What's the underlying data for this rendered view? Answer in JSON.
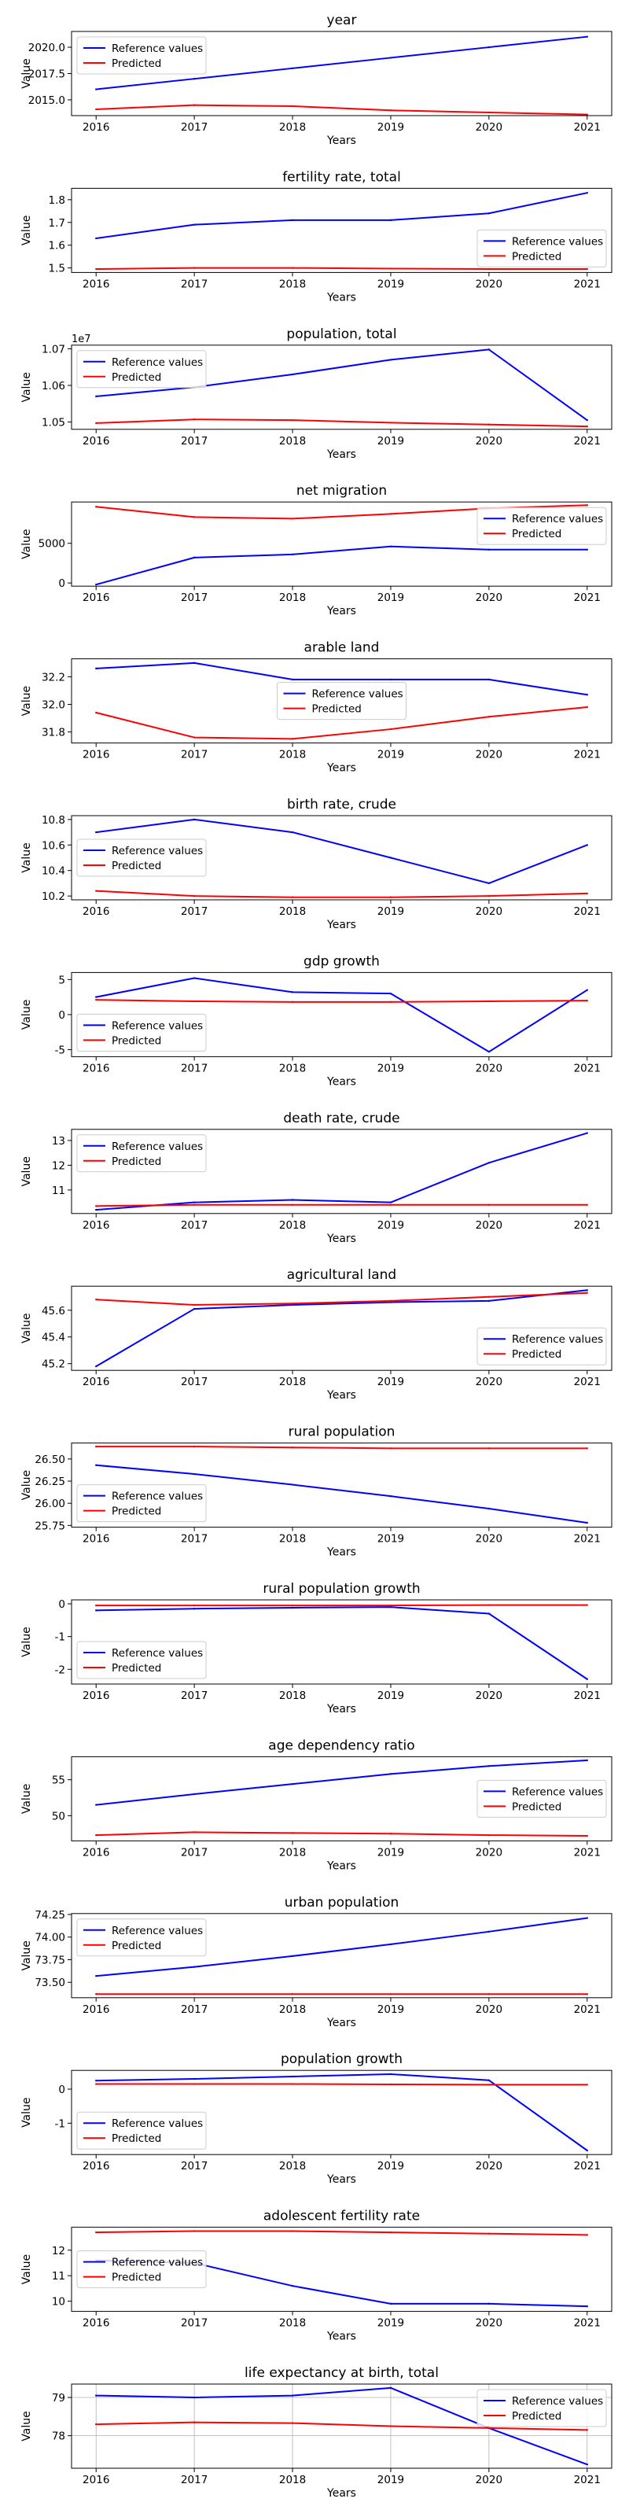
{
  "chart_data": [
    {
      "type": "line",
      "title": "year",
      "xlabel": "Years",
      "ylabel": "Value",
      "ylim": [
        2013.5,
        2021.5
      ],
      "yticks": [
        2015.0,
        2017.5,
        2020.0
      ],
      "tick_decimals": 1,
      "legend": "upper-left",
      "grid": false,
      "x": [
        2016,
        2017,
        2018,
        2019,
        2020,
        2021
      ],
      "series": [
        {
          "name": "Reference values",
          "color": "#0000ff",
          "values": [
            2016,
            2017,
            2018,
            2019,
            2020,
            2021
          ]
        },
        {
          "name": "Predicted",
          "color": "#ff0000",
          "values": [
            2014.1,
            2014.5,
            2014.4,
            2014.0,
            2013.8,
            2013.6
          ]
        }
      ]
    },
    {
      "type": "line",
      "title": "fertility rate, total",
      "xlabel": "Years",
      "ylabel": "Value",
      "ylim": [
        1.48,
        1.85
      ],
      "yticks": [
        1.5,
        1.6,
        1.7,
        1.8
      ],
      "tick_decimals": 1,
      "legend": "lower-right",
      "grid": false,
      "x": [
        2016,
        2017,
        2018,
        2019,
        2020,
        2021
      ],
      "series": [
        {
          "name": "Reference values",
          "color": "#0000ff",
          "values": [
            1.63,
            1.69,
            1.71,
            1.71,
            1.74,
            1.83
          ]
        },
        {
          "name": "Predicted",
          "color": "#ff0000",
          "values": [
            1.495,
            1.5,
            1.5,
            1.497,
            1.495,
            1.495
          ]
        }
      ]
    },
    {
      "type": "line",
      "title": "population, total",
      "xlabel": "Years",
      "ylabel": "Value",
      "ylim": [
        1.048,
        1.071
      ],
      "yticks": [
        1.05,
        1.06,
        1.07
      ],
      "tick_decimals": 2,
      "offset_text": "1e7",
      "legend": "upper-left",
      "grid": false,
      "x": [
        2016,
        2017,
        2018,
        2019,
        2020,
        2021
      ],
      "series": [
        {
          "name": "Reference values",
          "color": "#0000ff",
          "values": [
            1.057,
            1.0595,
            1.063,
            1.067,
            1.0698,
            1.0505
          ]
        },
        {
          "name": "Predicted",
          "color": "#ff0000",
          "values": [
            1.0497,
            1.0507,
            1.0505,
            1.0498,
            1.0493,
            1.0488
          ]
        }
      ]
    },
    {
      "type": "line",
      "title": "net migration",
      "xlabel": "Years",
      "ylabel": "Value",
      "ylim": [
        -400,
        10200
      ],
      "yticks": [
        0,
        5000
      ],
      "tick_decimals": 0,
      "legend": "upper-right",
      "grid": false,
      "x": [
        2016,
        2017,
        2018,
        2019,
        2020,
        2021
      ],
      "series": [
        {
          "name": "Reference values",
          "color": "#0000ff",
          "values": [
            -200,
            3200,
            3600,
            4600,
            4200,
            4200
          ]
        },
        {
          "name": "Predicted",
          "color": "#ff0000",
          "values": [
            9600,
            8300,
            8100,
            8700,
            9400,
            9800
          ]
        }
      ]
    },
    {
      "type": "line",
      "title": "arable land",
      "xlabel": "Years",
      "ylabel": "Value",
      "ylim": [
        31.72,
        32.33
      ],
      "yticks": [
        31.8,
        32.0,
        32.2
      ],
      "tick_decimals": 1,
      "legend": "center",
      "grid": false,
      "x": [
        2016,
        2017,
        2018,
        2019,
        2020,
        2021
      ],
      "series": [
        {
          "name": "Reference values",
          "color": "#0000ff",
          "values": [
            32.26,
            32.3,
            32.18,
            32.18,
            32.18,
            32.07
          ]
        },
        {
          "name": "Predicted",
          "color": "#ff0000",
          "values": [
            31.94,
            31.76,
            31.75,
            31.82,
            31.91,
            31.98
          ]
        }
      ]
    },
    {
      "type": "line",
      "title": "birth rate, crude",
      "xlabel": "Years",
      "ylabel": "Value",
      "ylim": [
        10.17,
        10.83
      ],
      "yticks": [
        10.2,
        10.4,
        10.6,
        10.8
      ],
      "tick_decimals": 1,
      "legend": "center-left",
      "grid": false,
      "x": [
        2016,
        2017,
        2018,
        2019,
        2020,
        2021
      ],
      "series": [
        {
          "name": "Reference values",
          "color": "#0000ff",
          "values": [
            10.7,
            10.8,
            10.7,
            10.5,
            10.3,
            10.6
          ]
        },
        {
          "name": "Predicted",
          "color": "#ff0000",
          "values": [
            10.24,
            10.2,
            10.19,
            10.19,
            10.2,
            10.22
          ]
        }
      ]
    },
    {
      "type": "line",
      "title": "gdp growth",
      "xlabel": "Years",
      "ylabel": "Value",
      "ylim": [
        -6.0,
        6.0
      ],
      "yticks": [
        -5,
        0,
        5
      ],
      "tick_decimals": 0,
      "legend": "lower-left",
      "grid": false,
      "x": [
        2016,
        2017,
        2018,
        2019,
        2020,
        2021
      ],
      "series": [
        {
          "name": "Reference values",
          "color": "#0000ff",
          "values": [
            2.5,
            5.2,
            3.2,
            3.0,
            -5.3,
            3.5
          ]
        },
        {
          "name": "Predicted",
          "color": "#ff0000",
          "values": [
            2.1,
            1.9,
            1.8,
            1.8,
            1.9,
            2.0
          ]
        }
      ]
    },
    {
      "type": "line",
      "title": "death rate, crude",
      "xlabel": "Years",
      "ylabel": "Value",
      "ylim": [
        10.05,
        13.45
      ],
      "yticks": [
        11,
        12,
        13
      ],
      "tick_decimals": 0,
      "legend": "upper-left",
      "grid": false,
      "x": [
        2016,
        2017,
        2018,
        2019,
        2020,
        2021
      ],
      "series": [
        {
          "name": "Reference values",
          "color": "#0000ff",
          "values": [
            10.2,
            10.5,
            10.6,
            10.5,
            12.1,
            13.3
          ]
        },
        {
          "name": "Predicted",
          "color": "#ff0000",
          "values": [
            10.35,
            10.4,
            10.4,
            10.4,
            10.4,
            10.4
          ]
        }
      ]
    },
    {
      "type": "line",
      "title": "agricultural land",
      "xlabel": "Years",
      "ylabel": "Value",
      "ylim": [
        45.15,
        45.78
      ],
      "yticks": [
        45.2,
        45.4,
        45.6
      ],
      "tick_decimals": 1,
      "legend": "lower-right",
      "grid": false,
      "x": [
        2016,
        2017,
        2018,
        2019,
        2020,
        2021
      ],
      "series": [
        {
          "name": "Reference values",
          "color": "#0000ff",
          "values": [
            45.18,
            45.61,
            45.64,
            45.66,
            45.67,
            45.75
          ]
        },
        {
          "name": "Predicted",
          "color": "#ff0000",
          "values": [
            45.68,
            45.64,
            45.65,
            45.67,
            45.7,
            45.73
          ]
        }
      ]
    },
    {
      "type": "line",
      "title": "rural population",
      "xlabel": "Years",
      "ylabel": "Value",
      "ylim": [
        25.73,
        26.68
      ],
      "yticks": [
        25.75,
        26.0,
        26.25,
        26.5
      ],
      "tick_decimals": 2,
      "legend": "lower-left",
      "grid": false,
      "x": [
        2016,
        2017,
        2018,
        2019,
        2020,
        2021
      ],
      "series": [
        {
          "name": "Reference values",
          "color": "#0000ff",
          "values": [
            26.43,
            26.33,
            26.21,
            26.08,
            25.94,
            25.78
          ]
        },
        {
          "name": "Predicted",
          "color": "#ff0000",
          "values": [
            26.64,
            26.64,
            26.63,
            26.62,
            26.62,
            26.62
          ]
        }
      ]
    },
    {
      "type": "line",
      "title": "rural population growth",
      "xlabel": "Years",
      "ylabel": "Value",
      "ylim": [
        -2.45,
        0.12
      ],
      "yticks": [
        -2,
        -1,
        0
      ],
      "tick_decimals": 0,
      "legend": "lower-left",
      "grid": false,
      "x": [
        2016,
        2017,
        2018,
        2019,
        2020,
        2021
      ],
      "series": [
        {
          "name": "Reference values",
          "color": "#0000ff",
          "values": [
            -0.2,
            -0.15,
            -0.12,
            -0.1,
            -0.3,
            -2.3
          ]
        },
        {
          "name": "Predicted",
          "color": "#ff0000",
          "values": [
            -0.05,
            -0.05,
            -0.05,
            -0.05,
            -0.04,
            -0.04
          ]
        }
      ]
    },
    {
      "type": "line",
      "title": "age dependency ratio",
      "xlabel": "Years",
      "ylabel": "Value",
      "ylim": [
        46.5,
        58.2
      ],
      "yticks": [
        50,
        55
      ],
      "tick_decimals": 0,
      "legend": "center-right",
      "grid": false,
      "x": [
        2016,
        2017,
        2018,
        2019,
        2020,
        2021
      ],
      "series": [
        {
          "name": "Reference values",
          "color": "#0000ff",
          "values": [
            51.5,
            53.0,
            54.4,
            55.8,
            56.9,
            57.7
          ]
        },
        {
          "name": "Predicted",
          "color": "#ff0000",
          "values": [
            47.3,
            47.7,
            47.6,
            47.5,
            47.3,
            47.2
          ]
        }
      ]
    },
    {
      "type": "line",
      "title": "urban population",
      "xlabel": "Years",
      "ylabel": "Value",
      "ylim": [
        73.33,
        74.26
      ],
      "yticks": [
        73.5,
        73.75,
        74.0,
        74.25
      ],
      "tick_decimals": 2,
      "legend": "upper-left",
      "grid": false,
      "x": [
        2016,
        2017,
        2018,
        2019,
        2020,
        2021
      ],
      "series": [
        {
          "name": "Reference values",
          "color": "#0000ff",
          "values": [
            73.57,
            73.67,
            73.79,
            73.92,
            74.06,
            74.21
          ]
        },
        {
          "name": "Predicted",
          "color": "#ff0000",
          "values": [
            73.37,
            73.37,
            73.37,
            73.37,
            73.37,
            73.37
          ]
        }
      ]
    },
    {
      "type": "line",
      "title": "population growth",
      "xlabel": "Years",
      "ylabel": "Value",
      "ylim": [
        -1.92,
        0.55
      ],
      "yticks": [
        -1,
        0
      ],
      "tick_decimals": 0,
      "legend": "lower-left",
      "grid": false,
      "x": [
        2016,
        2017,
        2018,
        2019,
        2020,
        2021
      ],
      "series": [
        {
          "name": "Reference values",
          "color": "#0000ff",
          "values": [
            0.25,
            0.3,
            0.37,
            0.44,
            0.26,
            -1.8
          ]
        },
        {
          "name": "Predicted",
          "color": "#ff0000",
          "values": [
            0.15,
            0.15,
            0.15,
            0.14,
            0.13,
            0.13
          ]
        }
      ]
    },
    {
      "type": "line",
      "title": "adolescent fertility rate",
      "xlabel": "Years",
      "ylabel": "Value",
      "ylim": [
        9.6,
        12.9
      ],
      "yticks": [
        10,
        11,
        12
      ],
      "tick_decimals": 0,
      "legend": "center-left",
      "grid": false,
      "x": [
        2016,
        2017,
        2018,
        2019,
        2020,
        2021
      ],
      "series": [
        {
          "name": "Reference values",
          "color": "#0000ff",
          "values": [
            11.6,
            11.5,
            10.6,
            9.9,
            9.9,
            9.8
          ]
        },
        {
          "name": "Predicted",
          "color": "#ff0000",
          "values": [
            12.7,
            12.75,
            12.75,
            12.7,
            12.65,
            12.6
          ]
        }
      ]
    },
    {
      "type": "line",
      "title": "life expectancy at birth, total",
      "xlabel": "Years",
      "ylabel": "Value",
      "ylim": [
        77.15,
        79.35
      ],
      "yticks": [
        78,
        79
      ],
      "tick_decimals": 0,
      "legend": "upper-right",
      "grid": true,
      "x": [
        2016,
        2017,
        2018,
        2019,
        2020,
        2021
      ],
      "series": [
        {
          "name": "Reference values",
          "color": "#0000ff",
          "values": [
            79.05,
            79.0,
            79.05,
            79.25,
            78.2,
            77.25
          ]
        },
        {
          "name": "Predicted",
          "color": "#ff0000",
          "values": [
            78.3,
            78.35,
            78.33,
            78.25,
            78.2,
            78.15
          ]
        }
      ]
    }
  ]
}
